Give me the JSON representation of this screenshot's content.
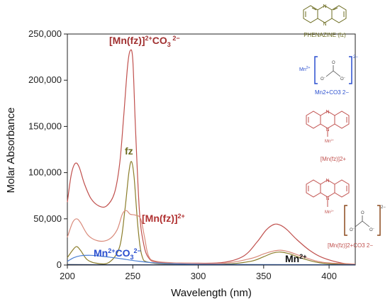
{
  "chart_data": {
    "type": "line",
    "xlabel": "Wavelength (nm)",
    "ylabel": "Molar Absorbance",
    "xlim": [
      200,
      420
    ],
    "ylim": [
      0,
      250000
    ],
    "xticks": [
      "200",
      "250",
      "300",
      "350",
      "400"
    ],
    "yticks": [
      "0",
      "50,000",
      "100,000",
      "150,000",
      "200,000",
      "250,000"
    ],
    "series": [
      {
        "name": "[Mn(fz)]2+CO3 2−",
        "color": "#c0504d",
        "points": [
          [
            200,
            68000
          ],
          [
            203,
            98000
          ],
          [
            206,
            110000
          ],
          [
            209,
            106000
          ],
          [
            213,
            88000
          ],
          [
            218,
            72000
          ],
          [
            224,
            64000
          ],
          [
            230,
            64000
          ],
          [
            236,
            78000
          ],
          [
            240,
            110000
          ],
          [
            243,
            160000
          ],
          [
            246,
            215000
          ],
          [
            248,
            232000
          ],
          [
            250,
            222000
          ],
          [
            252,
            150000
          ],
          [
            255,
            60000
          ],
          [
            258,
            25000
          ],
          [
            262,
            8000
          ],
          [
            270,
            3000
          ],
          [
            300,
            2000
          ],
          [
            320,
            3000
          ],
          [
            335,
            10000
          ],
          [
            345,
            25000
          ],
          [
            352,
            38000
          ],
          [
            358,
            44000
          ],
          [
            363,
            43000
          ],
          [
            368,
            38000
          ],
          [
            375,
            28000
          ],
          [
            385,
            16000
          ],
          [
            395,
            8000
          ],
          [
            410,
            2000
          ],
          [
            420,
            1000
          ]
        ]
      },
      {
        "name": "fz",
        "color": "#8b7d2a",
        "points": [
          [
            200,
            8000
          ],
          [
            204,
            16000
          ],
          [
            207,
            20000
          ],
          [
            210,
            16000
          ],
          [
            215,
            6000
          ],
          [
            222,
            2000
          ],
          [
            232,
            3000
          ],
          [
            240,
            20000
          ],
          [
            244,
            60000
          ],
          [
            247,
            100000
          ],
          [
            249,
            112000
          ],
          [
            251,
            95000
          ],
          [
            254,
            40000
          ],
          [
            257,
            10000
          ],
          [
            262,
            3000
          ],
          [
            280,
            1000
          ],
          [
            320,
            1000
          ],
          [
            340,
            4000
          ],
          [
            350,
            9000
          ],
          [
            357,
            13000
          ],
          [
            363,
            14000
          ],
          [
            370,
            12000
          ],
          [
            380,
            7000
          ],
          [
            395,
            2000
          ],
          [
            420,
            500
          ]
        ]
      },
      {
        "name": "[Mn(fz)]2+",
        "color": "#d98a7a",
        "points": [
          [
            200,
            30000
          ],
          [
            204,
            46000
          ],
          [
            207,
            50000
          ],
          [
            210,
            46000
          ],
          [
            216,
            32000
          ],
          [
            224,
            26000
          ],
          [
            232,
            28000
          ],
          [
            238,
            38000
          ],
          [
            242,
            55000
          ],
          [
            245,
            59000
          ],
          [
            248,
            55000
          ],
          [
            252,
            54000
          ],
          [
            256,
            50000
          ],
          [
            259,
            30000
          ],
          [
            262,
            10000
          ],
          [
            268,
            4000
          ],
          [
            290,
            2000
          ],
          [
            320,
            2000
          ],
          [
            340,
            7000
          ],
          [
            350,
            12000
          ],
          [
            357,
            15000
          ],
          [
            363,
            16000
          ],
          [
            370,
            14000
          ],
          [
            380,
            9000
          ],
          [
            395,
            3000
          ],
          [
            420,
            1000
          ]
        ]
      },
      {
        "name": "Mn2+CO3 2−",
        "color": "#4a7fd4",
        "points": [
          [
            200,
            4000
          ],
          [
            205,
            8000
          ],
          [
            210,
            10000
          ],
          [
            218,
            10500
          ],
          [
            226,
            9500
          ],
          [
            235,
            8000
          ],
          [
            245,
            6000
          ],
          [
            255,
            4000
          ],
          [
            270,
            2000
          ],
          [
            300,
            800
          ],
          [
            350,
            500
          ],
          [
            420,
            300
          ]
        ]
      },
      {
        "name": "Mn2+",
        "color": "#1a2a4a",
        "points": [
          [
            200,
            500
          ],
          [
            230,
            300
          ],
          [
            300,
            200
          ],
          [
            420,
            100
          ]
        ]
      }
    ],
    "annotations": [
      {
        "text": "[Mn(fz)]2+CO3 2−"
      },
      {
        "text": "fz"
      },
      {
        "text": "[Mn(fz)]2+"
      },
      {
        "text": "Mn2+CO3 2−"
      },
      {
        "text": "Mn2+"
      }
    ]
  },
  "structures": {
    "phenazine_label": "PHENAZINE (fz)",
    "mn_carbonate_label": "Mn2+CO3 2−",
    "mn_fz_label": "[Mn(fz)]2+",
    "mn_fz_carbonate_label": "[Mn(fz)]2+CO3 2−"
  },
  "colors": {
    "red": "#c0504d",
    "olive": "#6b6b1f",
    "blue": "#2a4fcf",
    "salmon": "#d98a7a"
  }
}
